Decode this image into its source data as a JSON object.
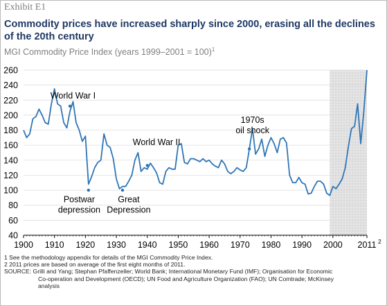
{
  "exhibit": "Exhibit E1",
  "title": "Commodity prices have increased sharply since 2000, erasing all the declines of the 20th century",
  "subtitle": "MGI Commodity Price Index (years 1999–2001 = 100)",
  "subtitle_sup": "1",
  "notes": [
    "1  See the methodology appendix for details of the MGI Commodity Price Index.",
    "2  2011 prices are based on average of the first eight months of 2011."
  ],
  "source": {
    "lines": [
      "SOURCE: Grilli and Yang; Stephan Pfaffenzeller; World Bank; International Monetary Fund (IMF); Organisation for Economic",
      "Co-operation and Development (OECD); UN Food and Agriculture Organization (FAO); UN Comtrade; McKinsey",
      "analysis"
    ]
  },
  "colors": {
    "line": "#2e75b6",
    "title": "#1f3864",
    "shade": "#d9d9d9",
    "grid": "#d9d9d9"
  },
  "chart_data": {
    "type": "line",
    "title": "MGI Commodity Price Index (years 1999–2001 = 100)",
    "xlabel": "",
    "ylabel": "",
    "xlim": [
      1900,
      2011
    ],
    "ylim": [
      40,
      260
    ],
    "grid": "horizontal",
    "y_ticks": [
      40,
      60,
      80,
      100,
      120,
      140,
      160,
      180,
      200,
      220,
      240,
      260
    ],
    "x_ticks": [
      "1900",
      "1910",
      "1920",
      "1930",
      "1940",
      "1950",
      "1960",
      "1970",
      "1980",
      "1990",
      "2000",
      "2011"
    ],
    "x_tick_values": [
      1900,
      1910,
      1920,
      1930,
      1940,
      1950,
      1960,
      1970,
      1980,
      1990,
      2000,
      2011
    ],
    "last_tick_sup": "2",
    "shaded_region": [
      1999,
      2011
    ],
    "series": [
      {
        "x": [
          1900,
          1901,
          1902,
          1903,
          1904,
          1905,
          1906,
          1907,
          1908,
          1909,
          1910,
          1911,
          1912,
          1913,
          1914,
          1915,
          1916,
          1917,
          1918,
          1919,
          1920,
          1921,
          1922,
          1923,
          1924,
          1925,
          1926,
          1927,
          1928,
          1929,
          1930,
          1931,
          1932,
          1933,
          1934,
          1935,
          1936,
          1937,
          1938,
          1939,
          1940,
          1941,
          1942,
          1943,
          1944,
          1945,
          1946,
          1947,
          1948,
          1949,
          1950,
          1951,
          1952,
          1953,
          1954,
          1955,
          1956,
          1957,
          1958,
          1959,
          1960,
          1961,
          1962,
          1963,
          1964,
          1965,
          1966,
          1967,
          1968,
          1969,
          1970,
          1971,
          1972,
          1973,
          1974,
          1975,
          1976,
          1977,
          1978,
          1979,
          1980,
          1981,
          1982,
          1983,
          1984,
          1985,
          1986,
          1987,
          1988,
          1989,
          1990,
          1991,
          1992,
          1993,
          1994,
          1995,
          1996,
          1997,
          1998,
          1999,
          2000,
          2001,
          2002,
          2003,
          2004,
          2005,
          2006,
          2007,
          2008,
          2009,
          2010,
          2011
        ],
        "values": [
          180,
          170,
          175,
          195,
          198,
          208,
          200,
          190,
          188,
          215,
          235,
          215,
          212,
          190,
          183,
          205,
          218,
          190,
          180,
          165,
          172,
          108,
          118,
          130,
          137,
          140,
          175,
          160,
          157,
          142,
          115,
          102,
          105,
          105,
          112,
          120,
          140,
          150,
          125,
          130,
          128,
          136,
          130,
          123,
          110,
          108,
          125,
          130,
          128,
          128,
          160,
          162,
          137,
          135,
          142,
          142,
          140,
          138,
          142,
          138,
          140,
          135,
          132,
          130,
          140,
          135,
          125,
          122,
          125,
          130,
          127,
          125,
          130,
          155,
          182,
          148,
          155,
          168,
          145,
          160,
          170,
          162,
          150,
          168,
          170,
          163,
          120,
          110,
          110,
          117,
          110,
          108,
          95,
          96,
          105,
          112,
          112,
          108,
          96,
          93,
          105,
          102,
          108,
          115,
          130,
          158,
          182,
          185,
          215,
          162,
          205,
          260
        ]
      }
    ],
    "annotations": [
      {
        "text": [
          "World War I"
        ],
        "x": 1915,
        "y": 212
      },
      {
        "text": [
          "Postwar",
          "depression"
        ],
        "x": 1921,
        "y": 100
      },
      {
        "text": [
          "Great",
          "Depression"
        ],
        "x": 1932,
        "y": 100
      },
      {
        "text": [
          "World War II"
        ],
        "x": 1940,
        "y": 133
      },
      {
        "text": [
          "1970s",
          "oil shock"
        ],
        "x": 1973,
        "y": 155
      }
    ]
  }
}
